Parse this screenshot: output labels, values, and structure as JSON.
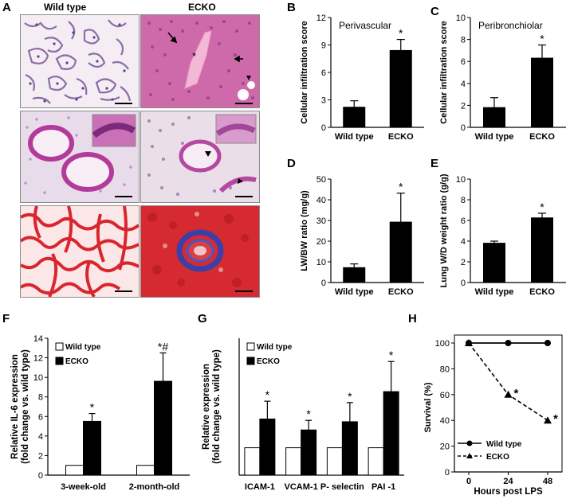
{
  "figure": {
    "panels": {
      "A": "A",
      "B": "B",
      "C": "C",
      "D": "D",
      "E": "E",
      "F": "F",
      "G": "G",
      "H": "H"
    },
    "histology": {
      "col_wild": "Wild type",
      "col_ecko": "ECKO",
      "ecko_asterisk": "*"
    }
  },
  "chart_data": [
    {
      "id": "B",
      "type": "bar",
      "title": "Perivascular",
      "ylabel": "Cellular infiltration score",
      "categories": [
        "Wild type",
        "ECKO"
      ],
      "values": [
        2.2,
        8.4
      ],
      "errors": [
        0.7,
        1.2
      ],
      "markers": [
        "",
        "*"
      ],
      "ylim": [
        0,
        12
      ],
      "yticks": [
        0,
        3,
        6,
        9,
        12
      ],
      "colors": [
        "#000000",
        "#000000"
      ]
    },
    {
      "id": "C",
      "type": "bar",
      "title": "Peribronchiolar",
      "ylabel": "Cellular infiltration score",
      "categories": [
        "Wild type",
        "ECKO"
      ],
      "values": [
        1.8,
        6.3
      ],
      "errors": [
        0.9,
        1.2
      ],
      "markers": [
        "",
        "*"
      ],
      "ylim": [
        0,
        10
      ],
      "yticks": [
        0,
        2,
        4,
        6,
        8,
        10
      ],
      "colors": [
        "#000000",
        "#000000"
      ]
    },
    {
      "id": "D",
      "type": "bar",
      "ylabel": "LW/BW ratio (mg/g)",
      "categories": [
        "Wild type",
        "ECKO"
      ],
      "values": [
        7.2,
        29.2
      ],
      "errors": [
        1.8,
        14.0
      ],
      "markers": [
        "",
        "*"
      ],
      "ylim": [
        0,
        50
      ],
      "yticks": [
        0,
        10,
        20,
        30,
        40,
        50
      ],
      "colors": [
        "#000000",
        "#000000"
      ]
    },
    {
      "id": "E",
      "type": "bar",
      "ylabel": "Lung W/D weight ratio (g/g)",
      "categories": [
        "Wild type",
        "ECKO"
      ],
      "values": [
        3.8,
        6.25
      ],
      "errors": [
        0.2,
        0.45
      ],
      "markers": [
        "",
        "*"
      ],
      "ylim": [
        0,
        10
      ],
      "yticks": [
        0,
        2,
        4,
        6,
        8,
        10
      ],
      "colors": [
        "#000000",
        "#000000"
      ]
    },
    {
      "id": "F",
      "type": "bar",
      "ylabel": "Relative IL-6 expression",
      "ylabel2": "(fold change vs. wild type)",
      "categories": [
        "3-week-old",
        "2-month-old"
      ],
      "series": [
        {
          "name": "Wild type",
          "values": [
            1.0,
            1.0
          ],
          "errors": [
            0,
            0
          ],
          "markers": [
            "",
            ""
          ],
          "fill": "#ffffff"
        },
        {
          "name": "ECKO",
          "values": [
            5.5,
            9.6
          ],
          "errors": [
            0.8,
            2.9
          ],
          "markers": [
            "*",
            "*#"
          ],
          "fill": "#000000"
        }
      ],
      "ylim": [
        0,
        14
      ],
      "yticks": [
        0,
        2,
        4,
        6,
        8,
        10,
        12,
        14
      ],
      "legend": "top-left"
    },
    {
      "id": "G",
      "type": "bar",
      "ylabel": "Relative expression",
      "ylabel2": "(fold change vs. wild type)",
      "categories": [
        "ICAM-1",
        "VCAM-1",
        "P- selectin",
        "PAI -1"
      ],
      "series": [
        {
          "name": "Wild type",
          "values": [
            1.0,
            1.0,
            1.0,
            1.0
          ],
          "errors": [
            0,
            0,
            0,
            0
          ],
          "markers": [
            "",
            "",
            "",
            ""
          ],
          "fill": "#ffffff"
        },
        {
          "name": "ECKO",
          "values": [
            2.05,
            1.65,
            1.95,
            3.05
          ],
          "errors": [
            0.65,
            0.35,
            0.7,
            1.1
          ],
          "markers": [
            "*",
            "*",
            "*",
            "*"
          ],
          "fill": "#000000"
        }
      ],
      "ylim": [
        0,
        5
      ],
      "yticks": [],
      "legend": "top-left"
    },
    {
      "id": "H",
      "type": "line",
      "ylabel": "Survival (%)",
      "xlabel": "Hours post LPS",
      "x": [
        0,
        24,
        48
      ],
      "series": [
        {
          "name": "Wild type",
          "values": [
            100,
            100,
            100
          ],
          "style": "solid",
          "marker": "circle",
          "markers": [
            "",
            "",
            ""
          ]
        },
        {
          "name": "ECKO",
          "values": [
            100,
            60,
            40
          ],
          "style": "dashed",
          "marker": "triangle",
          "markers": [
            "",
            "*",
            "*"
          ]
        }
      ],
      "ylim": [
        0,
        100
      ],
      "yticks": [
        0,
        20,
        40,
        60,
        80,
        100
      ],
      "xticks": [
        0,
        24,
        48
      ],
      "legend": "bottom-left"
    }
  ]
}
